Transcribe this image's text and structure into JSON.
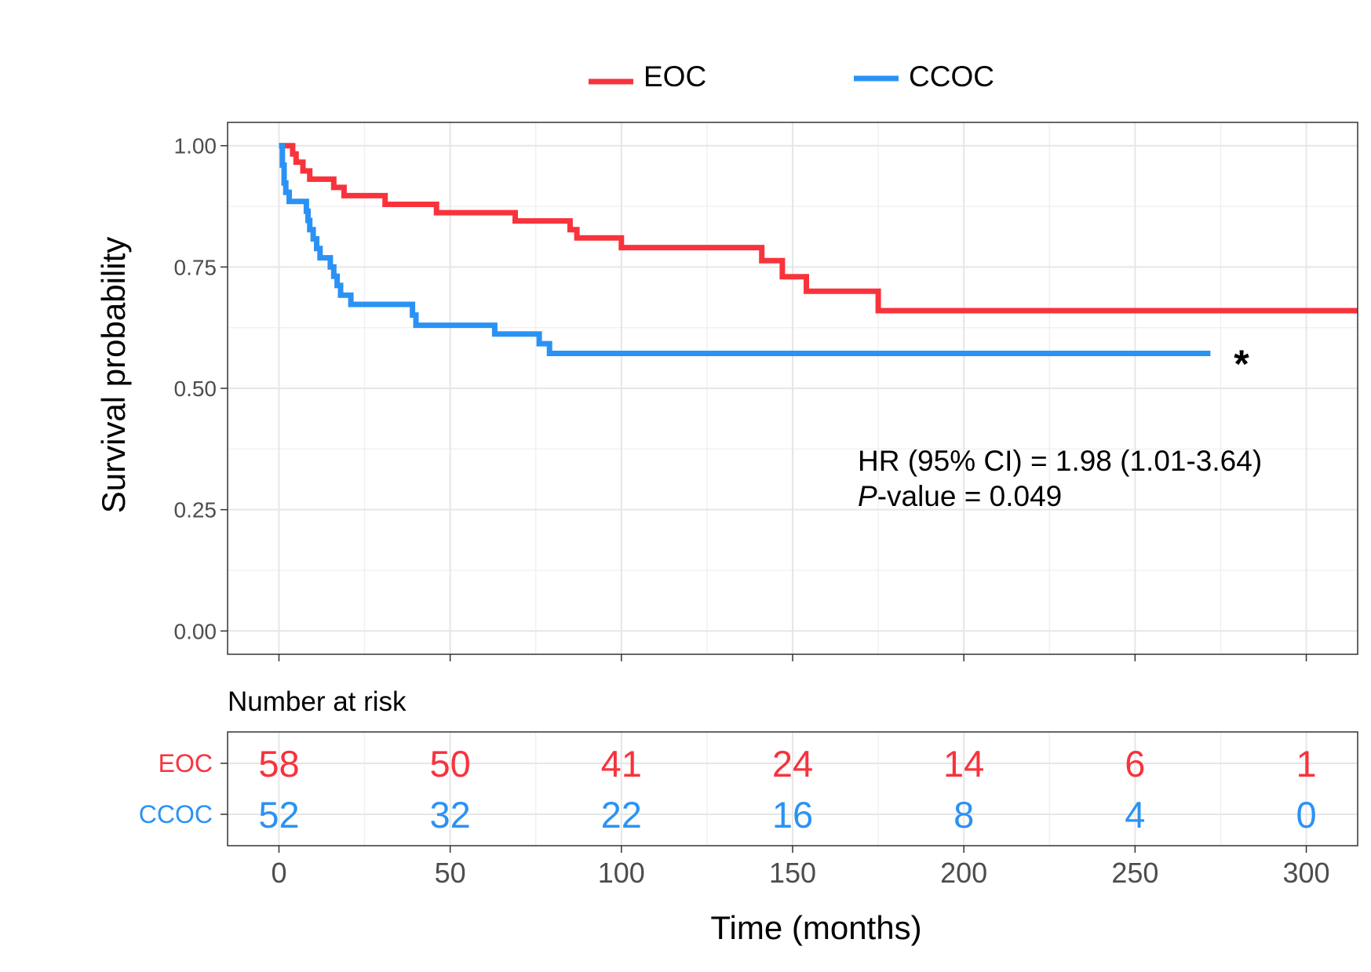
{
  "chart_data": [
    {
      "type": "line",
      "step": true,
      "legend": {
        "position": "top"
      },
      "grid": true,
      "ylabel": "Survival probability",
      "xlim": [
        -15,
        315
      ],
      "ylim": [
        -0.048,
        1.048
      ],
      "yticks": [
        0,
        0.25,
        0.5,
        0.75,
        1
      ],
      "ytick_labels": [
        "0.00",
        "0.25",
        "0.50",
        "0.75",
        "1.00"
      ],
      "xticks": [
        0,
        50,
        100,
        150,
        200,
        250,
        300
      ],
      "series": [
        {
          "name": "EOC",
          "color": "#F8333C",
          "points": [
            [
              0,
              1.0
            ],
            [
              4,
              0.983
            ],
            [
              5,
              0.966
            ],
            [
              7,
              0.948
            ],
            [
              9,
              0.931
            ],
            [
              16,
              0.914
            ],
            [
              19,
              0.897
            ],
            [
              31,
              0.879
            ],
            [
              46,
              0.862
            ],
            [
              69,
              0.845
            ],
            [
              85,
              0.827
            ],
            [
              87,
              0.81
            ],
            [
              100,
              0.79
            ],
            [
              141,
              0.763
            ],
            [
              147,
              0.73
            ],
            [
              154,
              0.7
            ],
            [
              175,
              0.66
            ],
            [
              315,
              0.66
            ]
          ]
        },
        {
          "name": "CCOC",
          "color": "#2B92F5",
          "points": [
            [
              0,
              1.0
            ],
            [
              1,
              0.96
            ],
            [
              1.5,
              0.923
            ],
            [
              2,
              0.904
            ],
            [
              3,
              0.885
            ],
            [
              8,
              0.865
            ],
            [
              8.5,
              0.846
            ],
            [
              9,
              0.827
            ],
            [
              10,
              0.808
            ],
            [
              11,
              0.788
            ],
            [
              12,
              0.769
            ],
            [
              15,
              0.75
            ],
            [
              16,
              0.731
            ],
            [
              17,
              0.712
            ],
            [
              18,
              0.692
            ],
            [
              21,
              0.673
            ],
            [
              39,
              0.651
            ],
            [
              40,
              0.63
            ],
            [
              63,
              0.612
            ],
            [
              76,
              0.592
            ],
            [
              79,
              0.572
            ],
            [
              272,
              0.572
            ]
          ]
        }
      ],
      "marker_text": "*",
      "annotations": {
        "hr": "HR (95% CI) = 1.98 (1.01-3.64)",
        "p_italic": "P",
        "p_rest": "-value = 0.049"
      }
    },
    {
      "type": "table",
      "title": "Number at risk",
      "xlabel": "Time (months)",
      "x": [
        0,
        50,
        100,
        150,
        200,
        250,
        300
      ],
      "xtick_labels": [
        "0",
        "50",
        "100",
        "150",
        "200",
        "250",
        "300"
      ],
      "rows": [
        {
          "name": "EOC",
          "color": "#F8333C",
          "values": [
            58,
            50,
            41,
            24,
            14,
            6,
            1
          ]
        },
        {
          "name": "CCOC",
          "color": "#2B92F5",
          "values": [
            52,
            32,
            22,
            16,
            8,
            4,
            0
          ]
        }
      ]
    }
  ]
}
